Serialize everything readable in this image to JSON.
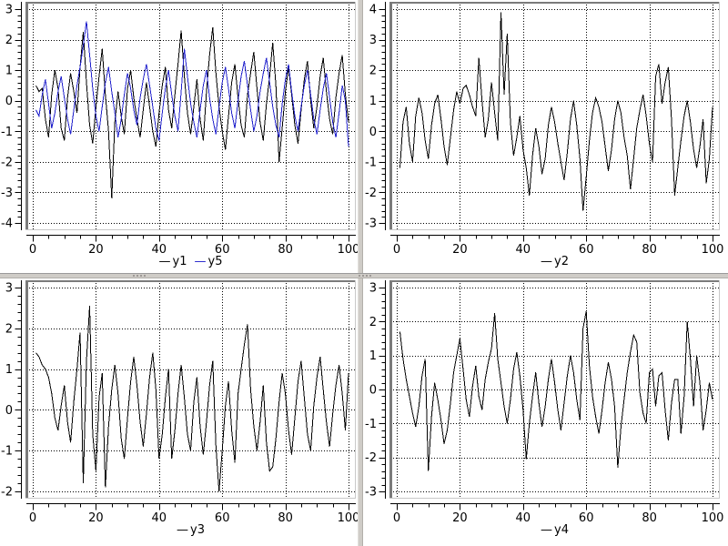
{
  "colors": {
    "background": "#ffffff",
    "grid": "#000000",
    "axis": "#000000",
    "frame": "#7b7b7b",
    "canvas_edge": "#c9c9c9",
    "splitter": "#cfccc7",
    "splitter_edge": "#9a9a9a",
    "grip_dot": "#8e8b86",
    "series_black": "#000000",
    "series_blue": "#2222cc"
  },
  "chart_data": [
    {
      "id": "y1-y5",
      "type": "line",
      "title": "",
      "xlabel": "",
      "ylabel": "",
      "x_range": [
        0,
        100
      ],
      "y_range": [
        -4,
        3
      ],
      "x_tick_labels": [
        0,
        20,
        40,
        60,
        80,
        100
      ],
      "y_tick_labels": [
        3,
        2,
        1,
        0,
        -1,
        -2,
        -3,
        -4
      ],
      "x_minor_step": 5,
      "y_minor_step": 0.2,
      "grid": "dotted",
      "legend": {
        "position": "bottom",
        "entries": [
          {
            "label": "y1",
            "color": "#000000"
          },
          {
            "label": "y5",
            "color": "#2222cc"
          }
        ]
      },
      "series": [
        {
          "name": "y1",
          "color": "#000000",
          "values": [
            0.5,
            0.3,
            0.4,
            -0.6,
            -1.2,
            0.2,
            1.0,
            0.4,
            -0.9,
            -1.3,
            0.1,
            0.9,
            0.3,
            -0.4,
            1.1,
            2.25,
            0.6,
            -0.8,
            -1.4,
            -0.2,
            0.8,
            1.7,
            0.2,
            -1.0,
            -3.2,
            -0.7,
            0.3,
            -0.5,
            -1.1,
            0.4,
            1.0,
            0.1,
            -0.6,
            -1.2,
            -0.3,
            0.6,
            -0.2,
            -1.0,
            -1.5,
            -0.4,
            0.5,
            1.1,
            -0.3,
            -0.9,
            0.2,
            1.2,
            2.3,
            0.8,
            -0.4,
            -1.1,
            -0.2,
            0.7,
            -0.6,
            -1.3,
            0.3,
            1.5,
            2.4,
            0.9,
            -0.2,
            -1.0,
            -1.6,
            -0.5,
            0.6,
            1.2,
            0.1,
            -0.8,
            -1.2,
            0.2,
            0.9,
            1.6,
            0.4,
            -0.7,
            -1.3,
            -0.1,
            0.8,
            1.9,
            0.5,
            -2.0,
            -0.9,
            0.3,
            1.1,
            0.2,
            -0.8,
            -1.4,
            -0.3,
            0.7,
            1.3,
            0.0,
            -0.9,
            -0.2,
            0.8,
            1.4,
            0.3,
            -0.6,
            -1.1,
            0.1,
            0.9,
            1.5,
            0.2,
            -0.7
          ]
        },
        {
          "name": "y5",
          "color": "#2222cc",
          "values": [
            -0.3,
            -0.5,
            0.2,
            0.7,
            -0.1,
            -0.9,
            -0.4,
            0.3,
            0.8,
            0.1,
            -0.6,
            -1.1,
            -0.3,
            0.5,
            1.1,
            1.8,
            2.6,
            1.5,
            0.4,
            -0.5,
            -1.0,
            -0.2,
            0.6,
            1.1,
            0.3,
            -0.4,
            -1.2,
            -0.6,
            0.2,
            0.9,
            0.4,
            -0.3,
            -0.8,
            0.1,
            0.7,
            1.2,
            0.5,
            -0.2,
            -0.9,
            -1.3,
            -0.4,
            0.4,
            1.0,
            0.2,
            -0.5,
            -1.0,
            0.3,
            1.7,
            0.8,
            -0.1,
            -0.7,
            -1.2,
            -0.3,
            0.5,
            1.0,
            0.1,
            -0.6,
            -1.1,
            -0.2,
            0.6,
            1.1,
            0.4,
            -0.4,
            -0.9,
            0.0,
            0.8,
            1.3,
            0.5,
            -0.3,
            -1.0,
            -0.5,
            0.3,
            0.9,
            1.4,
            0.6,
            -0.2,
            -0.8,
            -1.2,
            -0.1,
            0.7,
            1.2,
            0.3,
            -0.5,
            -1.0,
            -0.2,
            0.5,
            1.0,
            0.2,
            -0.6,
            -1.1,
            -0.3,
            0.4,
            0.9,
            0.1,
            -0.7,
            -1.2,
            -0.4,
            0.5,
            0.0,
            -1.5
          ]
        }
      ]
    },
    {
      "id": "y2",
      "type": "line",
      "title": "",
      "xlabel": "",
      "ylabel": "",
      "x_range": [
        0,
        100
      ],
      "y_range": [
        -3,
        4
      ],
      "x_tick_labels": [
        0,
        20,
        40,
        60,
        80,
        100
      ],
      "y_tick_labels": [
        4,
        3,
        2,
        1,
        0,
        -1,
        -2,
        -3
      ],
      "x_minor_step": 5,
      "y_minor_step": 0.2,
      "grid": "dotted",
      "legend": {
        "position": "bottom",
        "entries": [
          {
            "label": "y2",
            "color": "#000000"
          }
        ]
      },
      "series": [
        {
          "name": "y2",
          "color": "#000000",
          "values": [
            -1.2,
            0.3,
            0.8,
            -0.4,
            -1.0,
            0.5,
            1.1,
            0.6,
            -0.3,
            -0.9,
            0.2,
            0.9,
            1.2,
            0.4,
            -0.5,
            -1.1,
            -0.2,
            0.7,
            1.3,
            0.9,
            1.4,
            1.5,
            1.2,
            0.8,
            0.5,
            2.4,
            1.0,
            -0.2,
            0.4,
            1.6,
            0.6,
            -0.3,
            3.9,
            1.2,
            3.2,
            0.3,
            -0.8,
            -0.2,
            0.5,
            -0.6,
            -1.2,
            -2.1,
            -0.8,
            0.1,
            -0.5,
            -1.4,
            -0.9,
            0.2,
            0.8,
            0.3,
            -0.4,
            -1.0,
            -1.6,
            -0.7,
            0.4,
            1.0,
            0.2,
            -0.9,
            -2.6,
            -1.5,
            -0.3,
            0.6,
            1.1,
            0.8,
            0.3,
            -0.5,
            -1.3,
            -0.6,
            0.4,
            1.0,
            0.6,
            -0.2,
            -0.8,
            -1.9,
            -0.9,
            0.1,
            0.7,
            1.2,
            0.5,
            -0.4,
            -1.0,
            1.8,
            2.2,
            0.9,
            1.6,
            2.1,
            0.4,
            -2.1,
            -1.2,
            -0.3,
            0.5,
            1.0,
            0.3,
            -0.6,
            -1.2,
            -0.5,
            0.4,
            -1.7,
            -0.9,
            0.8
          ]
        }
      ]
    },
    {
      "id": "y3",
      "type": "line",
      "title": "",
      "xlabel": "",
      "ylabel": "",
      "x_range": [
        0,
        100
      ],
      "y_range": [
        -2,
        3
      ],
      "x_tick_labels": [
        0,
        20,
        40,
        60,
        80,
        100
      ],
      "y_tick_labels": [
        3,
        2,
        1,
        0,
        -1,
        -2
      ],
      "x_minor_step": 5,
      "y_minor_step": 0.2,
      "grid": "dotted",
      "legend": {
        "position": "bottom",
        "entries": [
          {
            "label": "y3",
            "color": "#000000"
          }
        ]
      },
      "series": [
        {
          "name": "y3",
          "color": "#000000",
          "values": [
            1.4,
            1.3,
            1.1,
            1.0,
            0.8,
            0.4,
            -0.2,
            -0.5,
            0.1,
            0.6,
            -0.3,
            -0.8,
            0.2,
            1.0,
            1.9,
            -1.8,
            1.2,
            2.55,
            -0.6,
            -1.5,
            0.3,
            0.9,
            -1.9,
            -0.4,
            0.5,
            1.1,
            0.4,
            -0.7,
            -1.2,
            -0.2,
            0.7,
            1.3,
            0.6,
            -0.3,
            -0.9,
            -0.1,
            0.8,
            1.4,
            0.5,
            -1.2,
            -0.6,
            0.3,
            1.0,
            -1.2,
            -0.5,
            0.4,
            1.1,
            0.3,
            -0.6,
            -1.0,
            0.2,
            0.8,
            -0.4,
            -1.1,
            -0.3,
            0.6,
            1.2,
            -0.9,
            -2.0,
            -1.0,
            0.1,
            0.7,
            -0.5,
            -1.3,
            0.4,
            1.0,
            1.6,
            2.1,
            0.5,
            -0.4,
            -1.0,
            -0.3,
            0.6,
            -0.8,
            -1.5,
            -1.4,
            -0.7,
            0.2,
            0.9,
            0.4,
            -0.5,
            -1.1,
            -0.2,
            0.7,
            1.2,
            0.3,
            -0.6,
            -1.0,
            0.1,
            0.8,
            1.3,
            0.5,
            -0.3,
            -0.9,
            -0.1,
            0.6,
            1.1,
            0.4,
            -0.5,
            0.9
          ]
        }
      ]
    },
    {
      "id": "y4",
      "type": "line",
      "title": "",
      "xlabel": "",
      "ylabel": "",
      "x_range": [
        0,
        100
      ],
      "y_range": [
        -3,
        3
      ],
      "x_tick_labels": [
        0,
        20,
        40,
        60,
        80,
        100
      ],
      "y_tick_labels": [
        3,
        2,
        1,
        0,
        -1,
        -2,
        -3
      ],
      "x_minor_step": 5,
      "y_minor_step": 0.2,
      "grid": "dotted",
      "legend": {
        "position": "bottom",
        "entries": [
          {
            "label": "y4",
            "color": "#000000"
          }
        ]
      },
      "series": [
        {
          "name": "y4",
          "color": "#000000",
          "values": [
            1.7,
            0.9,
            0.3,
            -0.2,
            -0.7,
            -1.1,
            -0.5,
            0.4,
            0.9,
            -2.4,
            -0.8,
            0.2,
            -0.3,
            -0.9,
            -1.6,
            -1.2,
            -0.4,
            0.5,
            1.0,
            1.5,
            0.6,
            -0.3,
            -0.8,
            0.1,
            0.7,
            -0.2,
            -0.6,
            0.3,
            0.8,
            1.2,
            2.25,
            0.9,
            0.2,
            -0.5,
            -1.0,
            -0.3,
            0.6,
            1.1,
            0.4,
            -0.6,
            -2.05,
            -1.0,
            -0.2,
            0.5,
            -0.4,
            -1.1,
            -0.5,
            0.3,
            0.9,
            0.2,
            -0.6,
            -1.2,
            -0.4,
            0.4,
            1.0,
            0.5,
            -0.3,
            -0.9,
            1.8,
            2.3,
            0.7,
            -0.2,
            -0.8,
            -1.3,
            -0.6,
            0.2,
            0.8,
            0.3,
            -0.5,
            -2.3,
            -1.1,
            -0.3,
            0.5,
            1.1,
            1.6,
            1.4,
            -0.1,
            -0.7,
            -1.0,
            0.5,
            0.6,
            -0.5,
            0.4,
            0.5,
            -0.6,
            -1.5,
            -0.4,
            0.3,
            0.3,
            -1.3,
            -0.2,
            2.0,
            0.9,
            -0.5,
            1.0,
            0.2,
            -1.2,
            -0.6,
            0.2,
            -0.3
          ]
        }
      ]
    }
  ]
}
